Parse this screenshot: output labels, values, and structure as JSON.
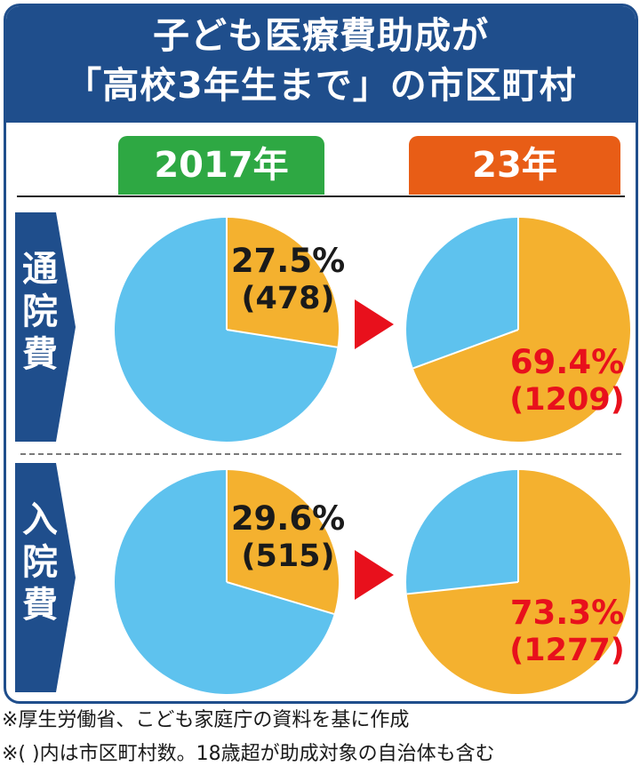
{
  "title": {
    "line1": "子ども医療費助成が",
    "line2": "「高校3年生まで」の市区町村"
  },
  "columns": [
    "2017年",
    "23年"
  ],
  "rows": [
    "通院費",
    "入院費"
  ],
  "colors": {
    "header": "#1f4e8c",
    "tab_2017": "#2ea843",
    "tab_23": "#e85d16",
    "slice_highlight": "#f4b12f",
    "slice_rest": "#5ec2ee",
    "arrow": "#e8101c",
    "label_2023": "#e8101c"
  },
  "chart_data": [
    {
      "type": "pie",
      "row": "通院費",
      "period": "2017年",
      "highlight_percent": 27.5,
      "count": 478,
      "label_percent": "27.5%",
      "label_count": "(478)"
    },
    {
      "type": "pie",
      "row": "通院費",
      "period": "23年",
      "highlight_percent": 69.4,
      "count": 1209,
      "label_percent": "69.4%",
      "label_count": "(1209)"
    },
    {
      "type": "pie",
      "row": "入院費",
      "period": "2017年",
      "highlight_percent": 29.6,
      "count": 515,
      "label_percent": "29.6%",
      "label_count": "(515)"
    },
    {
      "type": "pie",
      "row": "入院費",
      "period": "23年",
      "highlight_percent": 73.3,
      "count": 1277,
      "label_percent": "73.3%",
      "label_count": "(1277)"
    }
  ],
  "notes": [
    "※厚生労働省、こども家庭庁の資料を基に作成",
    "※( )内は市区町村数。18歳超が助成対象の自治体も含む"
  ]
}
